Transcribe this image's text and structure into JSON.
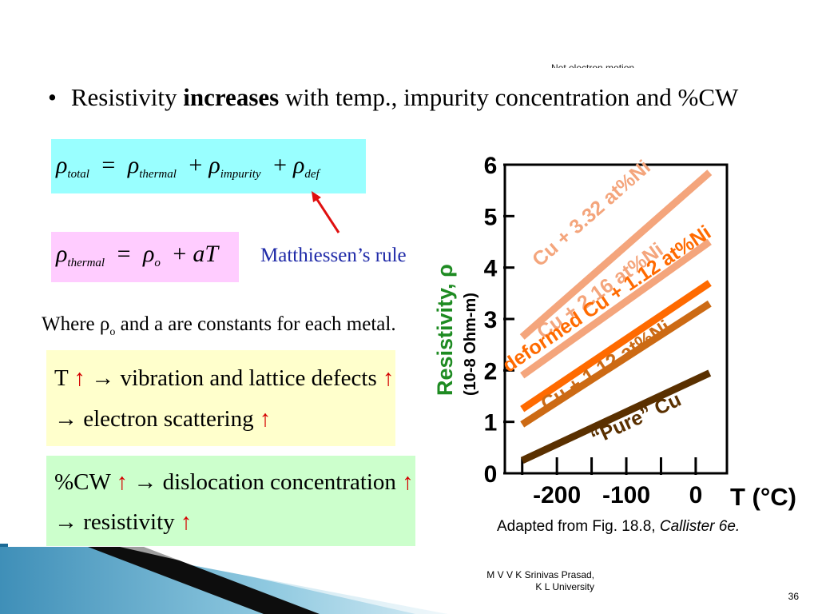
{
  "cutoff_text": "Net electron motion",
  "bullet": {
    "prefix": "Resistivity ",
    "bold": "increases",
    "suffix": " with temp., impurity concentration and %CW"
  },
  "eq_total": {
    "rho": "ρ",
    "total": "total",
    "eq": "=",
    "thermal": "thermal",
    "plus": "+",
    "impurity": "impurity",
    "def": "def"
  },
  "eq_thermal": {
    "rho": "ρ",
    "thermal": "thermal",
    "eq": "=",
    "rho0": "ρ",
    "o": "o",
    "plus": "+",
    "aT": "aT"
  },
  "matthiessen": "Matthiessen’s rule",
  "where": {
    "prefix": "Where ρ",
    "sub": "o",
    "suffix": " and a are constants for each metal."
  },
  "box_temp": {
    "line1_a": "T ",
    "arrow_up": "↑",
    "line1_b": " → vibration and lattice defects ",
    "line2": "→ electron scattering"
  },
  "box_cw": {
    "line1_a": "%CW ",
    "line1_b": " → dislocation concentration ",
    "line2": "→ resistivity"
  },
  "chart_data": {
    "type": "line",
    "ylabel": "Resistivity, ρ",
    "yunit": "(10-8 Ohm-m)",
    "xlabel": "T (°C)",
    "xlim": [
      -275,
      45
    ],
    "ylim": [
      0,
      6
    ],
    "yticks": [
      0,
      1,
      2,
      3,
      4,
      5,
      6
    ],
    "xticks": [
      -200,
      -100,
      0
    ],
    "series": [
      {
        "name": "Cu + 3.32 at%Ni",
        "color": "#f4a57c",
        "x": [
          -250,
          20
        ],
        "y": [
          2.65,
          5.85
        ],
        "label_x": -225,
        "label_y": 4.0
      },
      {
        "name": "Cu + 2.16 at%Ni",
        "color": "#f4a57c",
        "x": [
          -250,
          20
        ],
        "y": [
          1.9,
          4.5
        ],
        "label_x": -220,
        "label_y": 2.6
      },
      {
        "name": "deformed Cu + 1.12 at%Ni",
        "color": "#ff6a00",
        "x": [
          -250,
          20
        ],
        "y": [
          1.25,
          3.7
        ],
        "label_x": -270,
        "label_y": 1.95
      },
      {
        "name": "Cu + 1.12 at%Ni",
        "color": "#cc6a14",
        "x": [
          -250,
          20
        ],
        "y": [
          0.95,
          3.3
        ],
        "label_x": -215,
        "label_y": 1.2
      },
      {
        "name": "“Pure” Cu",
        "color": "#5a3000",
        "x": [
          -250,
          20
        ],
        "y": [
          0.25,
          1.95
        ],
        "label_x": -145,
        "label_y": 0.55
      }
    ]
  },
  "caption": {
    "prefix": "Adapted from Fig. 18.8, ",
    "italic": "Callister 6e."
  },
  "author": {
    "line1": "M V V K Srinivas Prasad,",
    "line2": "K L University"
  },
  "page_number": "36"
}
